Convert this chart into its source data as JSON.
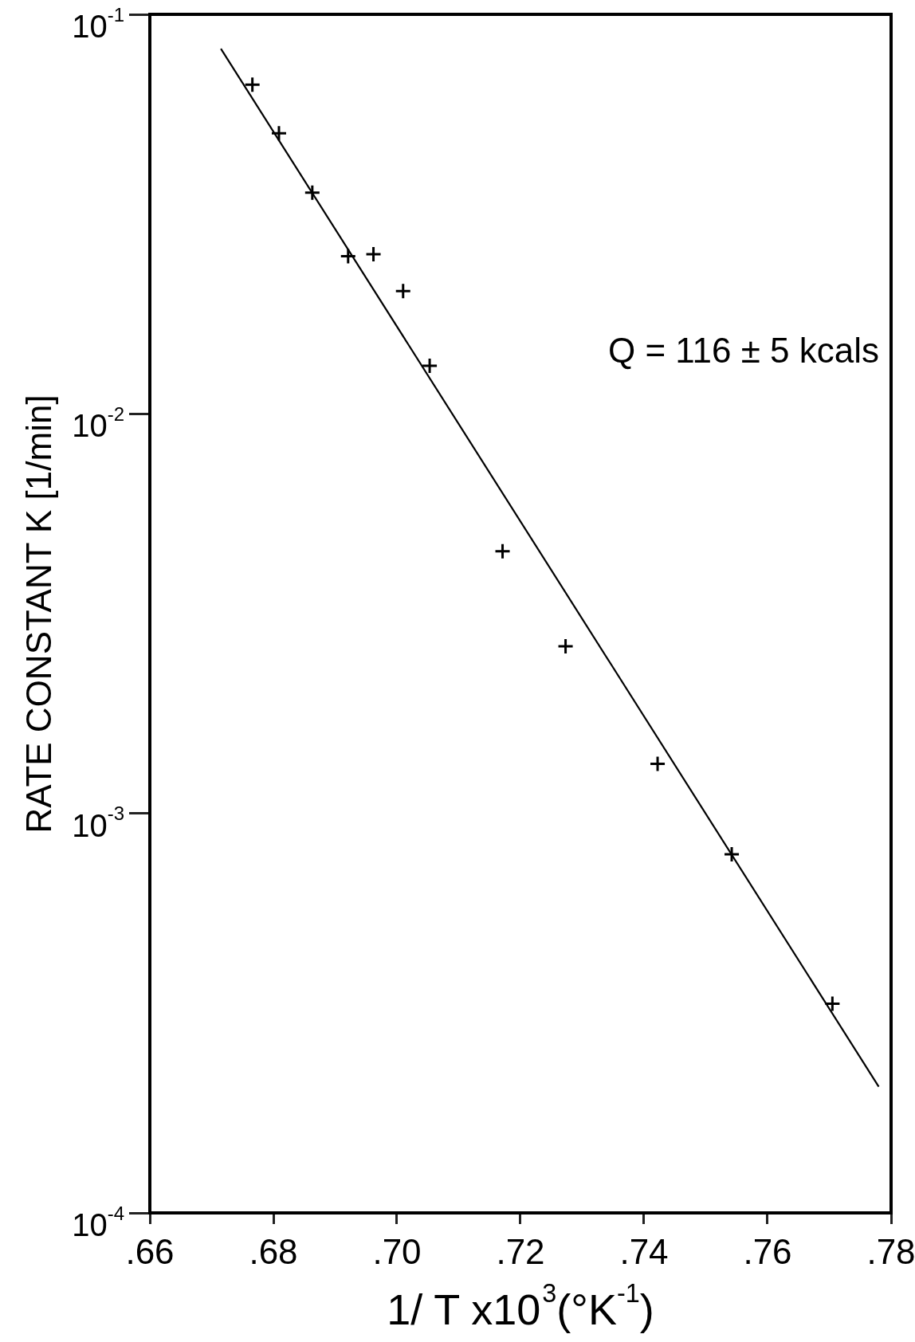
{
  "chart_data": {
    "type": "scatter",
    "xlabel": "1/ T x10$^{3}$(°K$^{-1}$)",
    "ylabel": "RATE CONSTANT K [1/min]",
    "annotations": [
      "Q = 116 ± 5 kcals"
    ],
    "xlim": [
      0.66,
      0.78
    ],
    "xticks": [
      {
        "value": 0.66,
        "label": ".66"
      },
      {
        "value": 0.68,
        "label": ".68"
      },
      {
        "value": 0.7,
        "label": ".70"
      },
      {
        "value": 0.72,
        "label": ".72"
      },
      {
        "value": 0.74,
        "label": ".74"
      },
      {
        "value": 0.76,
        "label": ".76"
      },
      {
        "value": 0.78,
        "label": ".78"
      }
    ],
    "ylim": [
      0.0001,
      0.1
    ],
    "yticks": [
      {
        "value": 0.0001,
        "label": "10$^{-4}$"
      },
      {
        "value": 0.001,
        "label": "10$^{-3}$"
      },
      {
        "value": 0.01,
        "label": "10$^{-2}$"
      },
      {
        "value": 0.1,
        "label": "10$^{-1}$"
      }
    ],
    "log": "y",
    "grid": false,
    "legend": false,
    "marker": "cross",
    "line_style": "solid",
    "series": [
      {
        "color": "#000000",
        "x": [
          0.6766,
          0.6809,
          0.6863,
          0.6921,
          0.6962,
          0.701,
          0.7053,
          0.7171,
          0.7273,
          0.7422,
          0.7542,
          0.7705
        ],
        "values": [
          0.0667,
          0.0504,
          0.0358,
          0.0248,
          0.0251,
          0.0203,
          0.0132,
          0.00453,
          0.00262,
          0.00133,
          0.00079,
          0.000334
        ]
      },
      {
        "type": "line",
        "color": "#000000",
        "marker": "none",
        "x": [
          0.6715,
          0.778
        ],
        "values": [
          0.082,
          0.000207
        ]
      }
    ]
  }
}
